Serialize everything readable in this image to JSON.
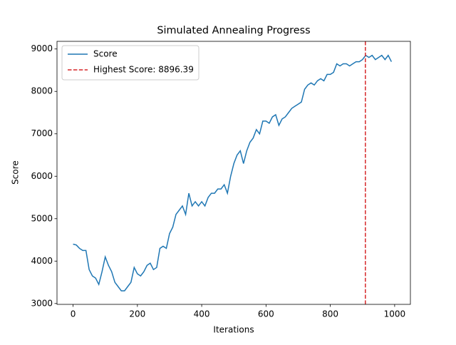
{
  "chart_data": {
    "type": "line",
    "title": "Simulated Annealing Progress",
    "x_label": "Iterations",
    "y_label": "Score",
    "x": [
      0,
      10,
      20,
      30,
      40,
      50,
      60,
      70,
      80,
      90,
      100,
      110,
      120,
      130,
      140,
      150,
      160,
      170,
      180,
      190,
      200,
      210,
      220,
      230,
      240,
      250,
      260,
      270,
      280,
      290,
      300,
      310,
      320,
      330,
      340,
      350,
      360,
      370,
      380,
      390,
      400,
      410,
      420,
      430,
      440,
      450,
      460,
      470,
      480,
      490,
      500,
      510,
      520,
      530,
      540,
      550,
      560,
      570,
      580,
      590,
      600,
      610,
      620,
      630,
      640,
      650,
      660,
      670,
      680,
      690,
      700,
      710,
      720,
      730,
      740,
      750,
      760,
      770,
      780,
      790,
      800,
      810,
      820,
      830,
      840,
      850,
      860,
      870,
      880,
      890,
      900,
      910,
      920,
      930,
      940,
      950,
      960,
      970,
      980,
      990
    ],
    "series": [
      {
        "name": "Score",
        "color": "#1f77b4",
        "values": [
          4400,
          4380,
          4300,
          4250,
          4250,
          3800,
          3650,
          3600,
          3450,
          3750,
          4100,
          3900,
          3750,
          3500,
          3400,
          3300,
          3300,
          3400,
          3500,
          3850,
          3700,
          3650,
          3750,
          3900,
          3950,
          3800,
          3850,
          4300,
          4350,
          4300,
          4650,
          4800,
          5100,
          5200,
          5300,
          5100,
          5600,
          5300,
          5400,
          5300,
          5400,
          5300,
          5500,
          5600,
          5600,
          5700,
          5700,
          5800,
          5600,
          6000,
          6300,
          6500,
          6600,
          6300,
          6600,
          6800,
          6900,
          7100,
          7000,
          7300,
          7300,
          7250,
          7400,
          7450,
          7200,
          7350,
          7400,
          7500,
          7600,
          7650,
          7700,
          7750,
          8050,
          8150,
          8200,
          8150,
          8250,
          8300,
          8250,
          8400,
          8400,
          8450,
          8650,
          8600,
          8650,
          8650,
          8600,
          8650,
          8700,
          8700,
          8750,
          8850,
          8800,
          8850,
          8750,
          8800,
          8850,
          8750,
          8850,
          8700
        ]
      }
    ],
    "vline": {
      "name": "Highest Score: 8896.39",
      "color": "#d62728",
      "x": 909
    },
    "xlim": [
      -50,
      1049
    ],
    "ylim": [
      2980,
      9180
    ],
    "xticks": [
      0,
      200,
      400,
      600,
      800,
      1000
    ],
    "yticks": [
      3000,
      4000,
      5000,
      6000,
      7000,
      8000,
      9000
    ],
    "legend": "upper-left"
  }
}
